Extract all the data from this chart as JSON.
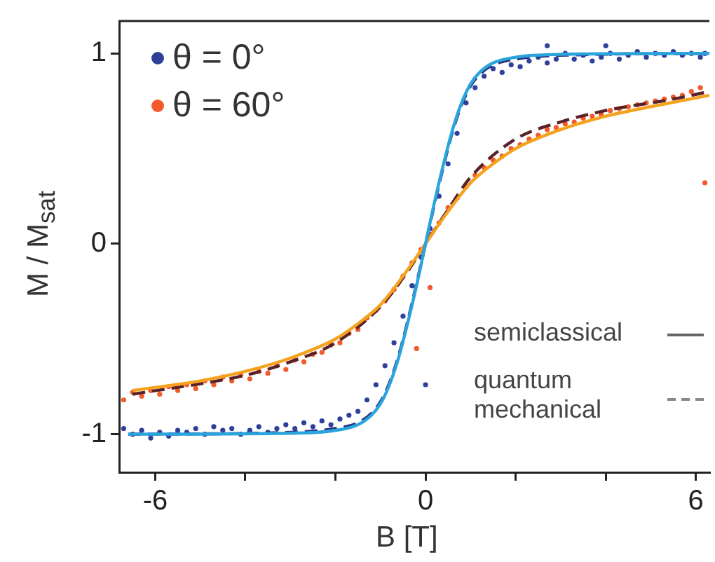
{
  "chart_data": {
    "type": "scatter",
    "xlabel": "B [T]",
    "ylabel": "M / M$_{sat}$",
    "xlim": [
      -6.8,
      6.3
    ],
    "ylim": [
      -1.2,
      1.17
    ],
    "xticks": [
      -6,
      {
        "value": -4,
        "label": null
      },
      {
        "value": -2,
        "label": null
      },
      0,
      {
        "value": 2,
        "label": null
      },
      {
        "value": 4,
        "label": null
      },
      6
    ],
    "yticks": [
      -1,
      0,
      1
    ],
    "grid": false,
    "legend": "top left",
    "marker": "circle",
    "annotations": [
      "semiclassical",
      "quantum mechanical"
    ],
    "series": [
      {
        "name": "θ = 0°",
        "color": "#2e409a",
        "x": [
          -6.7,
          -6.5,
          -6.3,
          -6.1,
          -5.9,
          -5.7,
          -5.5,
          -5.3,
          -5.1,
          -4.9,
          -4.7,
          -4.5,
          -4.3,
          -4.1,
          -3.9,
          -3.7,
          -3.5,
          -3.3,
          -3.1,
          -2.9,
          -2.7,
          -2.5,
          -2.3,
          -2.1,
          -1.9,
          -1.7,
          -1.5,
          -1.3,
          -1.1,
          -0.9,
          -0.7,
          -0.5,
          -0.3,
          -0.1,
          0.1,
          0.3,
          0.5,
          0.7,
          0.9,
          1.1,
          1.3,
          1.5,
          1.7,
          1.9,
          2.1,
          2.3,
          2.5,
          2.7,
          2.9,
          3.1,
          3.3,
          3.5,
          3.7,
          3.9,
          4.1,
          4.3,
          4.5,
          4.7,
          4.9,
          5.1,
          5.3,
          5.5,
          5.7,
          5.9,
          6.1,
          6.2,
          0,
          2.7,
          4
        ],
        "values": [
          -0.97,
          -1.0,
          -0.98,
          -1.02,
          -0.99,
          -1.01,
          -0.98,
          -0.99,
          -0.97,
          -1.0,
          -0.96,
          -0.98,
          -0.97,
          -1.0,
          -0.98,
          -0.96,
          -0.99,
          -0.97,
          -0.95,
          -0.97,
          -0.94,
          -0.96,
          -0.93,
          -0.95,
          -0.92,
          -0.9,
          -0.88,
          -0.82,
          -0.74,
          -0.64,
          -0.52,
          -0.38,
          -0.22,
          -0.07,
          0.08,
          0.25,
          0.42,
          0.58,
          0.74,
          0.82,
          0.88,
          0.92,
          0.9,
          0.94,
          0.93,
          0.96,
          0.98,
          0.95,
          0.97,
          1.0,
          0.97,
          0.99,
          0.96,
          0.98,
          1.0,
          0.97,
          0.99,
          1.01,
          0.98,
          1.0,
          0.99,
          1.01,
          0.99,
          1.0,
          0.98,
          1.0,
          -0.74,
          1.04,
          1.04
        ]
      },
      {
        "name": "θ = 60°",
        "color": "#f15a2b",
        "x": [
          -6.7,
          -6.5,
          -6.3,
          -6.1,
          -5.9,
          -5.7,
          -5.5,
          -5.3,
          -5.1,
          -4.9,
          -4.7,
          -4.5,
          -4.3,
          -4.1,
          -3.9,
          -3.7,
          -3.5,
          -3.3,
          -3.1,
          -2.9,
          -2.7,
          -2.5,
          -2.3,
          -2.1,
          -1.9,
          -1.7,
          -1.5,
          -1.3,
          -1.1,
          -0.9,
          -0.7,
          -0.5,
          -0.3,
          -0.1,
          0.1,
          0.3,
          0.5,
          0.7,
          0.9,
          1.1,
          1.3,
          1.5,
          1.7,
          1.9,
          2.1,
          2.3,
          2.5,
          2.7,
          2.9,
          3.1,
          3.3,
          3.5,
          3.7,
          3.9,
          4.1,
          4.3,
          4.5,
          4.7,
          4.9,
          5.1,
          5.3,
          5.5,
          5.7,
          5.9,
          6.1,
          0.1,
          -0.2,
          6.2
        ],
        "values": [
          -0.82,
          -0.78,
          -0.8,
          -0.77,
          -0.79,
          -0.75,
          -0.77,
          -0.74,
          -0.76,
          -0.72,
          -0.74,
          -0.7,
          -0.72,
          -0.69,
          -0.71,
          -0.67,
          -0.68,
          -0.64,
          -0.66,
          -0.61,
          -0.62,
          -0.58,
          -0.57,
          -0.53,
          -0.52,
          -0.47,
          -0.45,
          -0.39,
          -0.35,
          -0.3,
          -0.24,
          -0.17,
          -0.1,
          -0.03,
          0.05,
          0.11,
          0.19,
          0.24,
          0.3,
          0.36,
          0.4,
          0.44,
          0.46,
          0.5,
          0.52,
          0.55,
          0.57,
          0.6,
          0.61,
          0.63,
          0.64,
          0.66,
          0.67,
          0.68,
          0.7,
          0.71,
          0.72,
          0.73,
          0.74,
          0.75,
          0.76,
          0.77,
          0.78,
          0.8,
          0.82,
          -0.23,
          -0.55,
          0.32
        ]
      },
      {
        "type": "line",
        "color": "#2aa4dc",
        "line_style": "solid",
        "marker": "none",
        "x": [
          -6.6,
          -3,
          -2,
          -1.5,
          -1.2,
          -1,
          -0.8,
          -0.6,
          -0.4,
          -0.2,
          0,
          0.2,
          0.4,
          0.6,
          0.8,
          1,
          1.2,
          1.5,
          2,
          3,
          6.3
        ],
        "values": [
          -1.0,
          -0.995,
          -0.98,
          -0.95,
          -0.9,
          -0.84,
          -0.74,
          -0.6,
          -0.42,
          -0.22,
          0,
          0.22,
          0.42,
          0.6,
          0.74,
          0.84,
          0.9,
          0.95,
          0.98,
          0.995,
          1.0
        ]
      },
      {
        "type": "line",
        "color": "#2a3580",
        "line_style": "dashed",
        "marker": "none",
        "x": [
          -6.6,
          -3,
          -2,
          -1.5,
          -1.2,
          -1,
          -0.8,
          -0.6,
          -0.4,
          -0.2,
          0,
          0.2,
          0.4,
          0.6,
          0.8,
          1,
          1.2,
          1.5,
          2,
          3,
          6.3
        ],
        "values": [
          -1.0,
          -0.99,
          -0.97,
          -0.94,
          -0.89,
          -0.83,
          -0.73,
          -0.59,
          -0.41,
          -0.21,
          0,
          0.21,
          0.41,
          0.59,
          0.73,
          0.83,
          0.89,
          0.94,
          0.97,
          0.99,
          1.0
        ]
      },
      {
        "type": "line",
        "color": "#f5a21e",
        "line_style": "solid",
        "marker": "none",
        "x": [
          -6.5,
          -5,
          -4,
          -3,
          -2,
          -1.5,
          -1,
          -0.5,
          0,
          0.5,
          1,
          1.5,
          2,
          3,
          4,
          5,
          6.3
        ],
        "values": [
          -0.77,
          -0.72,
          -0.67,
          -0.6,
          -0.5,
          -0.42,
          -0.32,
          -0.17,
          0,
          0.17,
          0.32,
          0.42,
          0.5,
          0.6,
          0.67,
          0.72,
          0.78
        ]
      },
      {
        "type": "line",
        "color": "#5a2228",
        "line_style": "dashed",
        "marker": "none",
        "x": [
          -6.5,
          -4,
          -3,
          -2,
          -1,
          -0.5,
          0,
          0.5,
          1,
          2,
          3,
          4,
          5.5,
          6.3
        ],
        "values": [
          -0.79,
          -0.69,
          -0.62,
          -0.52,
          -0.33,
          -0.18,
          0,
          0.18,
          0.35,
          0.55,
          0.64,
          0.7,
          0.76,
          0.8
        ]
      }
    ]
  }
}
